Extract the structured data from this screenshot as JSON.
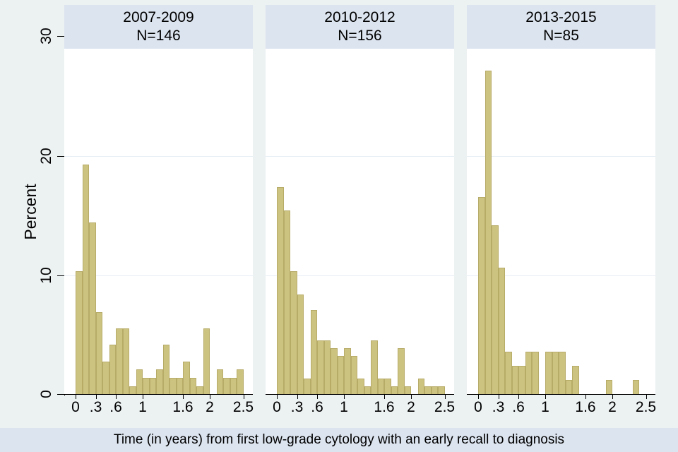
{
  "figure": {
    "ylabel": "Percent",
    "xlabel": "Time (in years) from first low-grade cytology with an early recall to diagnosis",
    "y_axis": {
      "tick_values": [
        0,
        10,
        20,
        30
      ],
      "tick_labels": [
        "0",
        "10",
        "20",
        "30"
      ],
      "grid_values": [
        10,
        20
      ],
      "range": [
        0,
        30
      ]
    },
    "x_axis": {
      "tick_values": [
        0,
        0.3,
        0.6,
        1,
        1.6,
        2,
        2.5
      ],
      "tick_labels": [
        "0",
        ".3",
        ".6",
        "1",
        "1.6",
        "2",
        "2.5"
      ],
      "range": [
        0,
        2.5
      ]
    }
  },
  "chart_data": [
    {
      "type": "bar",
      "title": "2007-2009",
      "subtitle": "N=146",
      "xlabel": "Time (in years) from first low-grade cytology with an early recall to diagnosis",
      "ylabel": "Percent",
      "ylim": [
        0,
        30
      ],
      "bin_start": 0,
      "bin_width": 0.1,
      "values_percent": [
        10.27,
        19.18,
        14.38,
        6.85,
        2.74,
        4.11,
        5.48,
        5.48,
        0.68,
        2.05,
        1.37,
        1.37,
        2.05,
        4.11,
        1.37,
        1.37,
        2.74,
        1.37,
        0.68,
        5.48,
        0,
        2.05,
        1.37,
        1.37,
        2.05
      ]
    },
    {
      "type": "bar",
      "title": "2010-2012",
      "subtitle": "N=156",
      "xlabel": "Time (in years) from first low-grade cytology with an early recall to diagnosis",
      "ylabel": "Percent",
      "ylim": [
        0,
        30
      ],
      "bin_start": 0,
      "bin_width": 0.1,
      "values_percent": [
        17.31,
        15.38,
        10.26,
        8.33,
        1.28,
        7.05,
        4.49,
        4.49,
        3.85,
        3.21,
        3.85,
        3.21,
        1.28,
        0.64,
        4.49,
        1.28,
        1.28,
        0.64,
        3.85,
        0.64,
        0,
        1.28,
        0.64,
        0.64,
        0.64
      ]
    },
    {
      "type": "bar",
      "title": "2013-2015",
      "subtitle": "N=85",
      "xlabel": "Time (in years) from first low-grade cytology with an early recall to diagnosis",
      "ylabel": "Percent",
      "ylim": [
        0,
        30
      ],
      "bin_start": 0,
      "bin_width": 0.1,
      "values_percent": [
        16.47,
        27.06,
        14.12,
        10.59,
        3.53,
        2.35,
        2.35,
        3.53,
        3.53,
        0,
        3.53,
        3.53,
        3.53,
        1.18,
        2.35,
        0,
        0,
        0,
        0,
        1.18,
        0,
        0,
        0,
        1.18,
        0
      ]
    }
  ],
  "colors": {
    "background": "#ecf1f2",
    "panel_header": "#dce4ef",
    "bottom_strip": "#dce4ef",
    "plot_background": "#ffffff",
    "gridline": "#e7eef5",
    "bar_fill": "#cdc380",
    "bar_border": "#b7ab68",
    "axis": "#000000",
    "text": "#000000"
  }
}
